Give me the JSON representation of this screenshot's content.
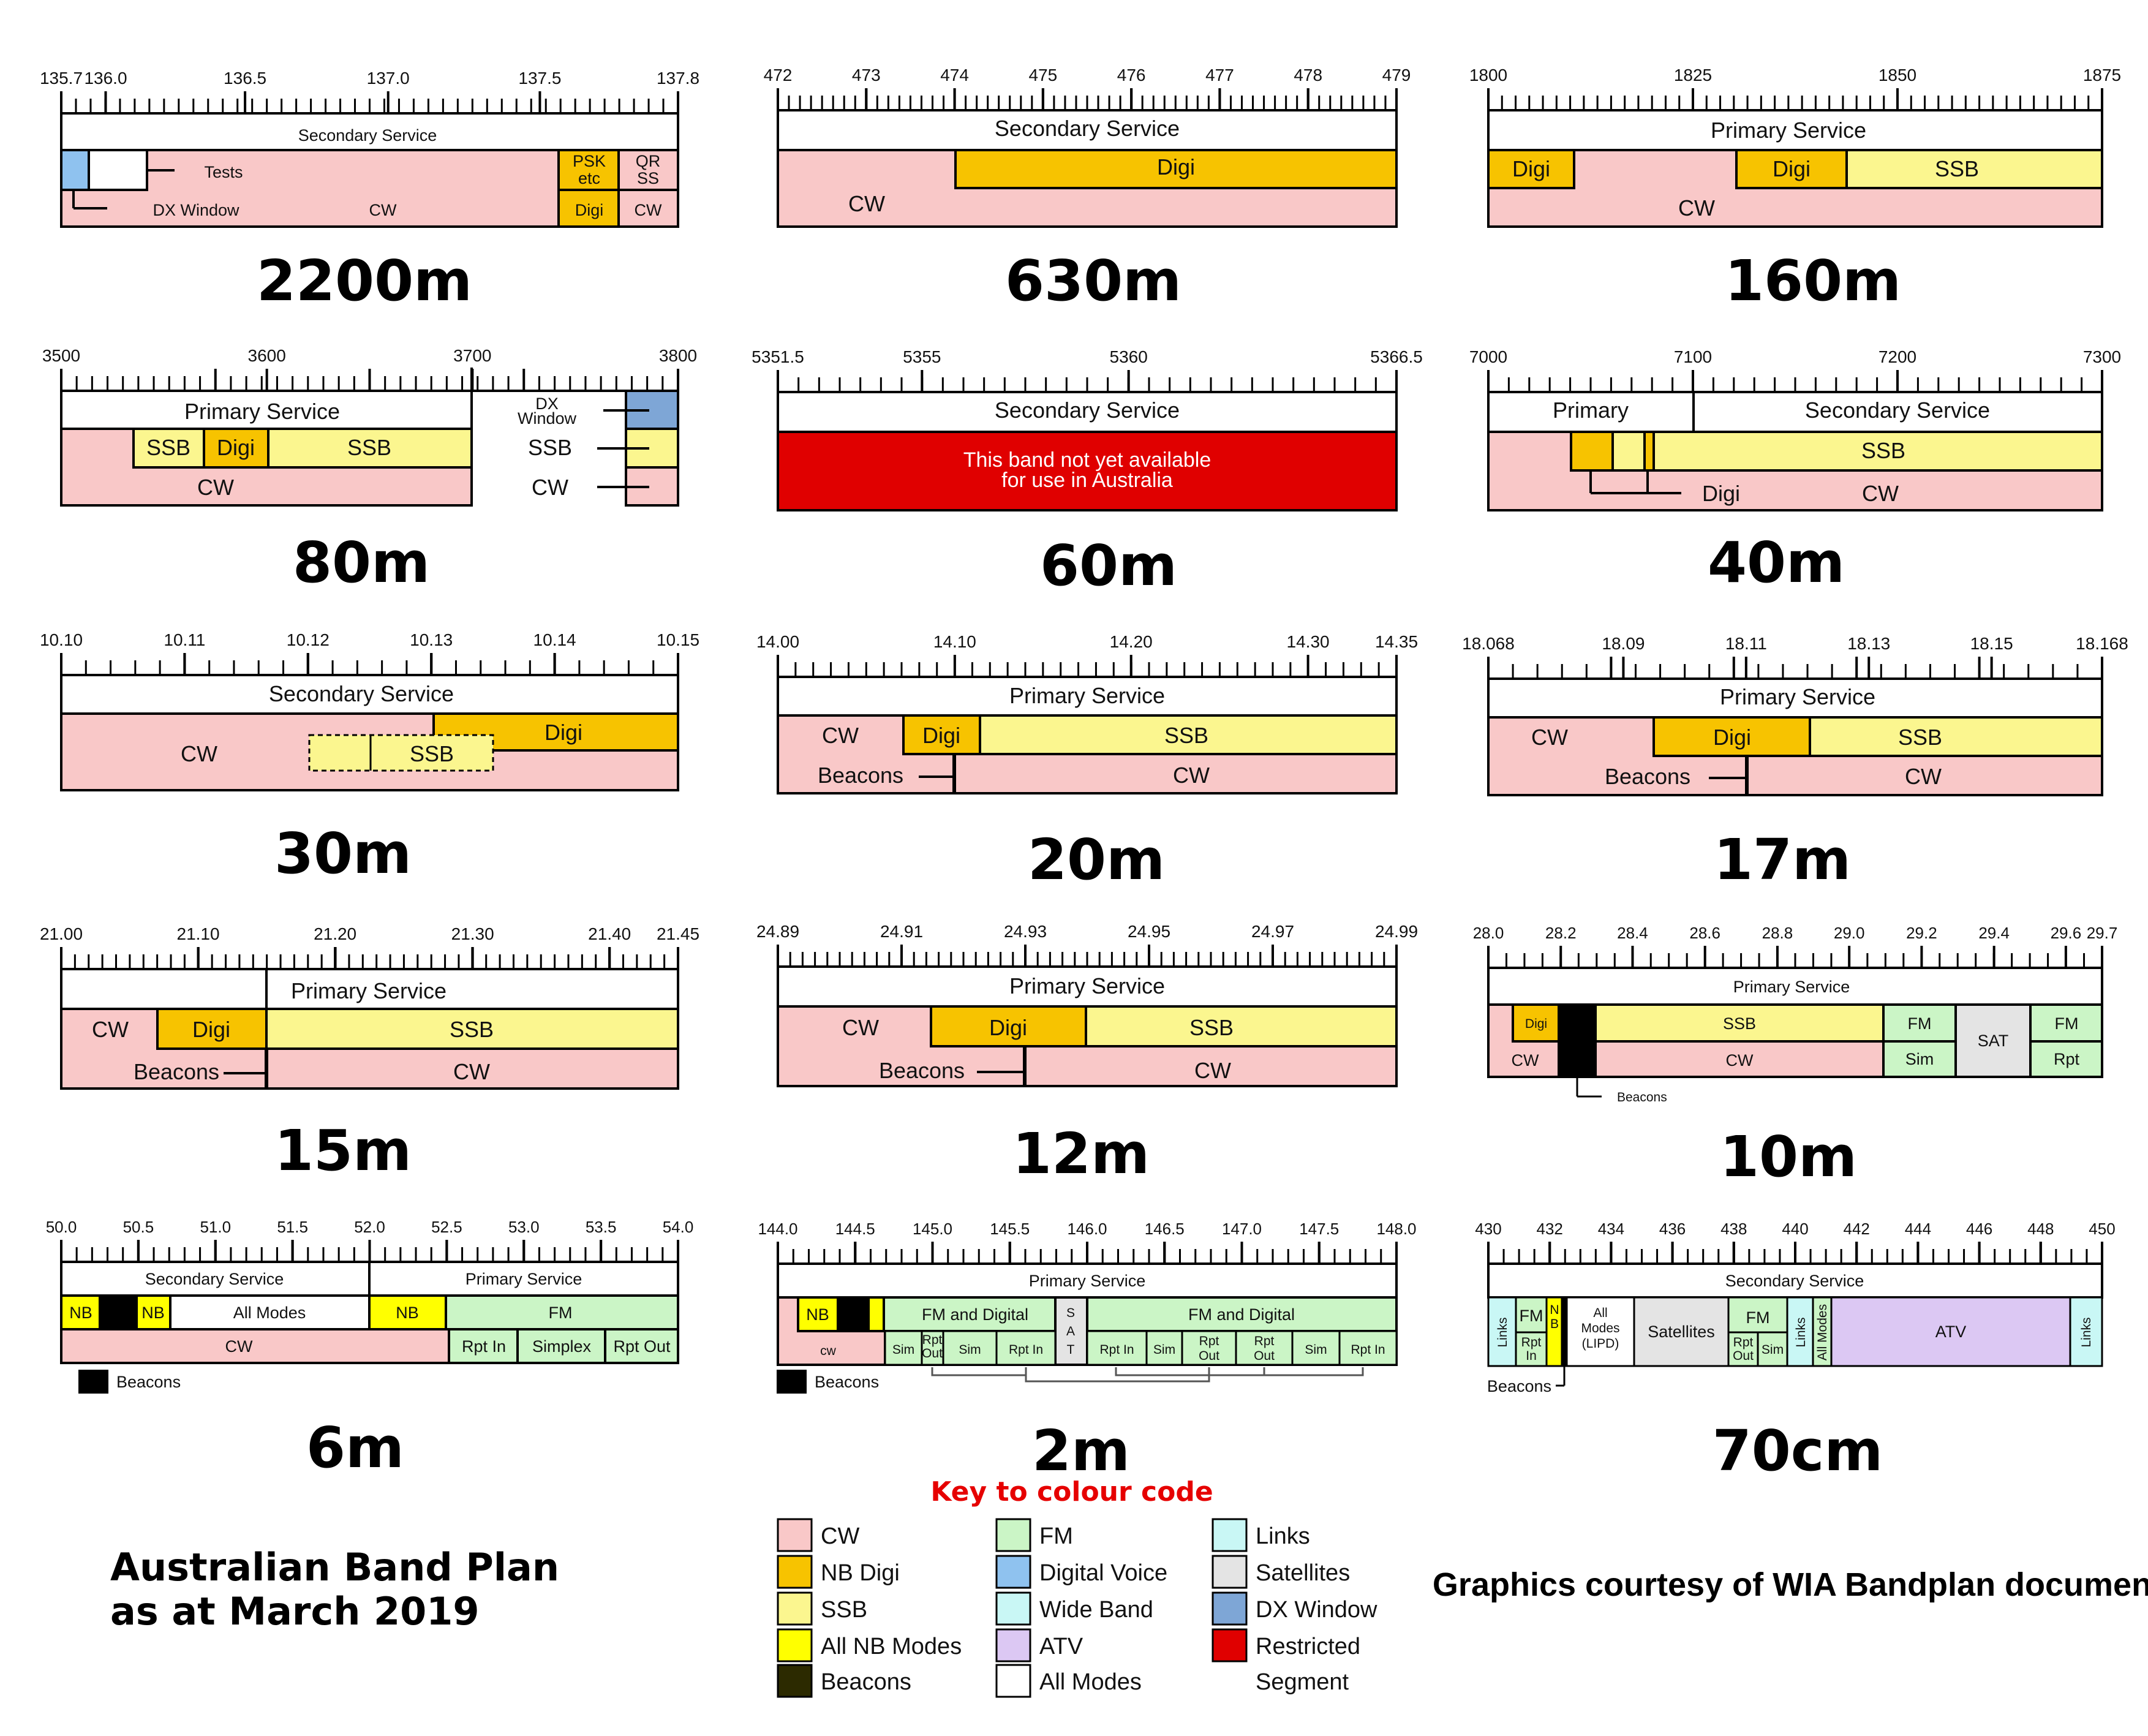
{
  "colors": {
    "cw": "#f9c8c8",
    "nb_digi": "#f7c300",
    "ssb": "#fbf68f",
    "all_nb": "#ffff00",
    "beacons": "#2c2a00",
    "fm": "#cbf5c6",
    "digital_voice": "#8fc2ef",
    "wide_band": "#c9f7f5",
    "atv": "#dcc8f3",
    "all_modes": "#ffffff",
    "links": "#c9f7f5",
    "satellites": "#e4e4e4",
    "dx_window": "#7ea6d6",
    "restricted": "#e00000"
  },
  "bands": {
    "b2200": {
      "name": "2200m",
      "ticks": [
        "135.7",
        "136.0",
        "136.5",
        "137.0",
        "137.5",
        "137.8"
      ],
      "service": "Secondary Service",
      "labels": {
        "tests": "Tests",
        "dx_window": "DX Window",
        "cw": "CW",
        "psk": "PSK etc",
        "psk1": "PSK",
        "psk2": "etc",
        "qrss1": "QR",
        "qrss2": "SS",
        "digi": "Digi",
        "cw2": "CW"
      }
    },
    "b630": {
      "name": "630m",
      "ticks": [
        "472",
        "473",
        "474",
        "475",
        "476",
        "477",
        "478",
        "479"
      ],
      "service": "Secondary Service",
      "labels": {
        "digi": "Digi",
        "cw": "CW"
      }
    },
    "b160": {
      "name": "160m",
      "ticks": [
        "1800",
        "1825",
        "1850",
        "1875"
      ],
      "service": "Primary Service",
      "labels": {
        "digi1": "Digi",
        "digi2": "Digi",
        "ssb": "SSB",
        "cw": "CW"
      }
    },
    "b80": {
      "name": "80m",
      "ticks": [
        "3500",
        "3600",
        "3700",
        "3800"
      ],
      "service": "Primary Service",
      "labels": {
        "ssb1": "SSB",
        "digi": "Digi",
        "ssb2": "SSB",
        "cw": "CW",
        "dx1": "DX",
        "dx2": "Window",
        "ssb3": "SSB",
        "cw2": "CW"
      }
    },
    "b60": {
      "name": "60m",
      "ticks": [
        "5351.5",
        "5355",
        "5360",
        "5366.5"
      ],
      "service": "Secondary Service",
      "notice1": "This band not yet available",
      "notice2": "for use in Australia"
    },
    "b40": {
      "name": "40m",
      "ticks": [
        "7000",
        "7100",
        "7200",
        "7300"
      ],
      "primary": "Primary",
      "secondary": "Secondary Service",
      "labels": {
        "ssb": "SSB",
        "digi": "Digi",
        "cw": "CW"
      }
    },
    "b30": {
      "name": "30m",
      "ticks": [
        "10.10",
        "10.11",
        "10.12",
        "10.13",
        "10.14",
        "10.15"
      ],
      "service": "Secondary Service",
      "labels": {
        "cw": "CW",
        "digi": "Digi",
        "ssb": "SSB"
      }
    },
    "b20": {
      "name": "20m",
      "ticks": [
        "14.00",
        "14.10",
        "14.20",
        "14.30",
        "14.35"
      ],
      "service": "Primary Service",
      "labels": {
        "cw": "CW",
        "digi": "Digi",
        "ssb": "SSB",
        "beacons": "Beacons",
        "cw2": "CW"
      }
    },
    "b17": {
      "name": "17m",
      "ticks": [
        "18.068",
        "18.09",
        "18.11",
        "18.13",
        "18.15",
        "18.168"
      ],
      "service": "Primary Service",
      "labels": {
        "cw": "CW",
        "digi": "Digi",
        "ssb": "SSB",
        "beacons": "Beacons",
        "cw2": "CW"
      }
    },
    "b15": {
      "name": "15m",
      "ticks": [
        "21.00",
        "21.10",
        "21.20",
        "21.30",
        "21.40",
        "21.45"
      ],
      "service": "Primary Service",
      "labels": {
        "cw": "CW",
        "digi": "Digi",
        "ssb": "SSB",
        "beacons": "Beacons",
        "cw2": "CW"
      }
    },
    "b12": {
      "name": "12m",
      "ticks": [
        "24.89",
        "24.91",
        "24.93",
        "24.95",
        "24.97",
        "24.99"
      ],
      "service": "Primary Service",
      "labels": {
        "cw": "CW",
        "digi": "Digi",
        "ssb": "SSB",
        "beacons": "Beacons",
        "cw2": "CW"
      }
    },
    "b10": {
      "name": "10m",
      "ticks": [
        "28.0",
        "28.2",
        "28.4",
        "28.6",
        "28.8",
        "29.0",
        "29.2",
        "29.4",
        "29.6",
        "29.7"
      ],
      "service": "Primary Service",
      "labels": {
        "digi": "Digi",
        "ssb": "SSB",
        "fm1": "FM",
        "sat": "SAT",
        "fm2": "FM",
        "cw": "CW",
        "cw2": "CW",
        "sim": "Sim",
        "rpt": "Rpt",
        "beacons": "Beacons"
      }
    },
    "b6": {
      "name": "6m",
      "ticks": [
        "50.0",
        "50.5",
        "51.0",
        "51.5",
        "52.0",
        "52.5",
        "53.0",
        "53.5",
        "54.0"
      ],
      "secondary": "Secondary Service",
      "primary": "Primary Service",
      "labels": {
        "nb1": "NB",
        "nb2": "NB",
        "all_modes": "All Modes",
        "nb3": "NB",
        "fm": "FM",
        "cw": "CW",
        "rpt_in": "Rpt In",
        "simplex": "Simplex",
        "rpt_out": "Rpt Out",
        "beacons": "Beacons"
      }
    },
    "b2": {
      "name": "2m",
      "ticks": [
        "144.0",
        "144.5",
        "145.0",
        "145.5",
        "146.0",
        "146.5",
        "147.0",
        "147.5",
        "148.0"
      ],
      "service": "Primary Service",
      "labels": {
        "nb": "NB",
        "fm_digital1": "FM and Digital",
        "s": "S",
        "a": "A",
        "t": "T",
        "fm_digital2": "FM and Digital",
        "cw": "cw",
        "sim1": "Sim",
        "rpt": "Rpt",
        "out": "Out",
        "sim2": "Sim",
        "rpt_in1": "Rpt In",
        "rpt_in2": "Rpt In",
        "sim3": "Sim",
        "rpt_out1_a": "Rpt",
        "rpt_out1_b": "Out",
        "rpt_out2_a": "Rpt",
        "rpt_out2_b": "Out",
        "sim4": "Sim",
        "rpt_in3": "Rpt In",
        "beacons": "Beacons"
      }
    },
    "b70": {
      "name": "70cm",
      "ticks": [
        "430",
        "432",
        "434",
        "436",
        "438",
        "440",
        "442",
        "444",
        "446",
        "448",
        "450"
      ],
      "service": "Secondary Service",
      "labels": {
        "links1": "Links",
        "fm": "FM",
        "rpt": "Rpt",
        "in": "In",
        "n": "N",
        "b": "B",
        "all1": "All",
        "all2": "Modes",
        "all3": "(LIPD)",
        "satellites": "Satellites",
        "fm2": "FM",
        "rpt2": "Rpt",
        "out": "Out",
        "sim": "Sim",
        "links2": "Links",
        "all_modes": "All Modes",
        "atv": "ATV",
        "links3": "Links",
        "beacons": "Beacons"
      }
    }
  },
  "key": {
    "title": "Key to colour code",
    "items": [
      {
        "label": "CW",
        "color": "cw"
      },
      {
        "label": "NB Digi",
        "color": "nb_digi"
      },
      {
        "label": "SSB",
        "color": "ssb"
      },
      {
        "label": "All NB Modes",
        "color": "all_nb"
      },
      {
        "label": "Beacons",
        "color": "beacons"
      },
      {
        "label": "FM",
        "color": "fm"
      },
      {
        "label": "Digital Voice",
        "color": "digital_voice"
      },
      {
        "label": "Wide Band",
        "color": "wide_band"
      },
      {
        "label": "ATV",
        "color": "atv"
      },
      {
        "label": "All Modes",
        "color": "all_modes"
      },
      {
        "label": "Links",
        "color": "links"
      },
      {
        "label": "Satellites",
        "color": "satellites"
      },
      {
        "label": "DX Window",
        "color": "dx_window"
      },
      {
        "label": "Restricted",
        "color": "restricted"
      }
    ],
    "restricted_line2": "Segment"
  },
  "title_line1": "Australian Band Plan",
  "title_line2": "as at March 2019",
  "credit": "Graphics courtesy of WIA Bandplan document"
}
